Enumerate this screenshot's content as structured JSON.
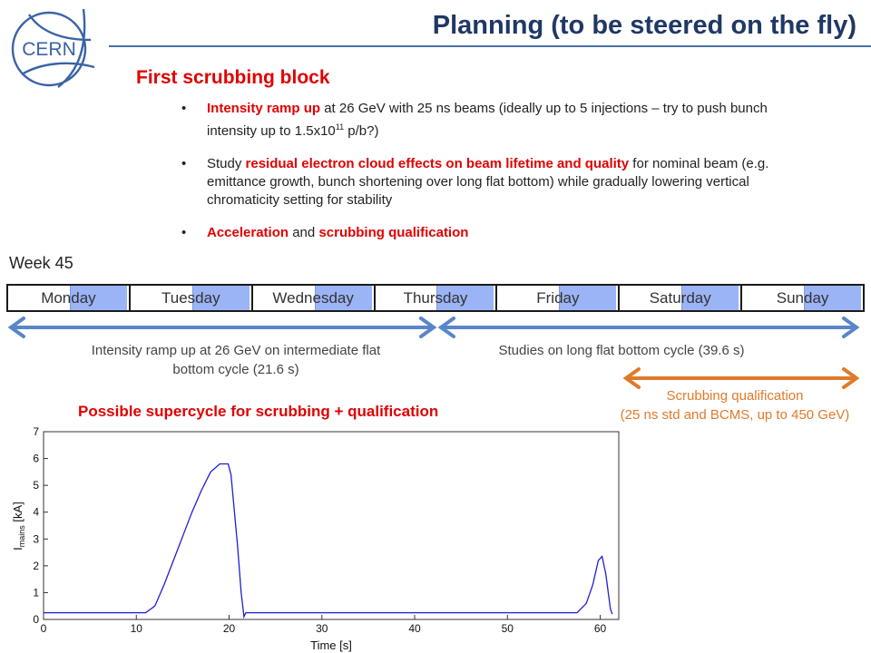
{
  "header": {
    "title": "Planning (to be steered on the fly)",
    "logo_text": "CERN"
  },
  "section": {
    "title": "First scrubbing block"
  },
  "bullets": [
    {
      "emphasis": "Intensity ramp up",
      "text_a": " at 26 GeV with 25 ns beams (ideally up to 5 injections – try to push bunch intensity up to 1.5x10",
      "sup": "11",
      "text_b": " p/b?)"
    },
    {
      "text_a": "Study ",
      "emphasis": "residual electron cloud effects on beam lifetime and quality",
      "text_b": " for nominal beam (e.g. emittance growth, bunch shortening over long flat bottom) while gradually lowering vertical chromaticity setting for stability"
    },
    {
      "emphasis": "Acceleration",
      "text_a": " and ",
      "emphasis2": "scrubbing qualification"
    }
  ],
  "week": {
    "label": "Week 45",
    "days": [
      "Monday",
      "Tuesday",
      "Wednesday",
      "Thursday",
      "Friday",
      "Saturday",
      "Sunday"
    ]
  },
  "notes": {
    "ramp": "Intensity ramp up at 26 GeV on intermediate flat bottom cycle (21.6 s)",
    "studies": "Studies on long flat bottom cycle (39.6 s)",
    "scrubbing_line1": "Scrubbing qualification",
    "scrubbing_line2": "(25 ns std and BCMS, up to 450 GeV)"
  },
  "colors": {
    "title": "#1f3864",
    "red": "#e00000",
    "blue_arrow": "#5a86c8",
    "orange_arrow": "#e07a2a",
    "day_block": "#8aa8f5",
    "curve": "#1f1fd0"
  },
  "chart_data": {
    "type": "line",
    "title": "Possible supercycle for scrubbing + qualification",
    "xlabel": "Time [s]",
    "ylabel": "I",
    "ylabel_sub": "mains",
    "ylabel_unit": " [kA]",
    "xlim": [
      0,
      62
    ],
    "ylim": [
      0,
      7
    ],
    "xticks": [
      0,
      10,
      20,
      30,
      40,
      50,
      60
    ],
    "yticks": [
      0,
      1,
      2,
      3,
      4,
      5,
      6,
      7
    ],
    "series": [
      {
        "x": [
          0,
          11,
          12,
          13,
          14,
          15,
          16,
          17,
          18,
          19,
          19.9,
          20.2,
          20.9,
          21.3,
          21.6,
          21.8,
          22,
          30,
          40,
          50,
          57.5,
          58.5,
          59.2,
          59.8,
          60.2,
          60.6,
          60.9,
          61.1,
          61.3
        ],
        "y": [
          0.25,
          0.25,
          0.5,
          1.3,
          2.2,
          3.1,
          4.0,
          4.8,
          5.5,
          5.8,
          5.8,
          5.4,
          2.8,
          1.0,
          0.1,
          0.25,
          0.25,
          0.25,
          0.25,
          0.25,
          0.25,
          0.6,
          1.3,
          2.2,
          2.35,
          1.7,
          0.9,
          0.4,
          0.2
        ]
      }
    ]
  }
}
